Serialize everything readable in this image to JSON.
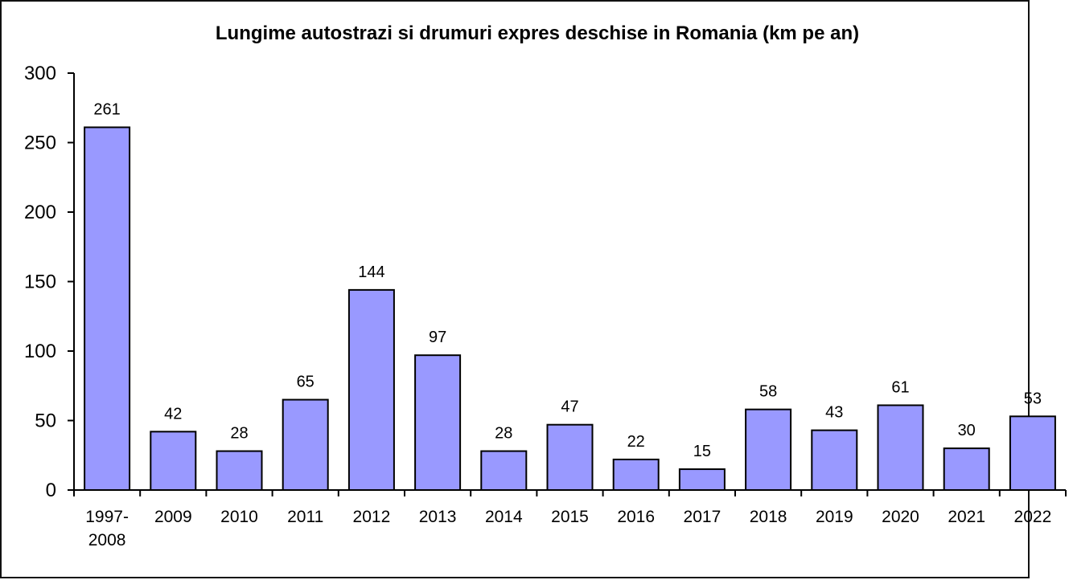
{
  "chart_data": {
    "type": "bar",
    "title": "Lungime autostrazi si drumuri expres deschise in Romania (km pe an)",
    "xlabel": "",
    "ylabel": "",
    "ylim": [
      0,
      300
    ],
    "yticks": [
      0,
      50,
      100,
      150,
      200,
      250,
      300
    ],
    "grid": false,
    "legend": "none",
    "categories": [
      [
        "1997-",
        "2008"
      ],
      [
        "2009"
      ],
      [
        "2010"
      ],
      [
        "2011"
      ],
      [
        "2012"
      ],
      [
        "2013"
      ],
      [
        "2014"
      ],
      [
        "2015"
      ],
      [
        "2016"
      ],
      [
        "2017"
      ],
      [
        "2018"
      ],
      [
        "2019"
      ],
      [
        "2020"
      ],
      [
        "2021"
      ],
      [
        "2022"
      ]
    ],
    "values": [
      261,
      42,
      28,
      65,
      144,
      97,
      28,
      47,
      22,
      15,
      58,
      43,
      61,
      30,
      53
    ],
    "colors": {
      "bar_fill": "#9999ff",
      "bar_stroke": "#000000",
      "axis": "#000000"
    }
  }
}
